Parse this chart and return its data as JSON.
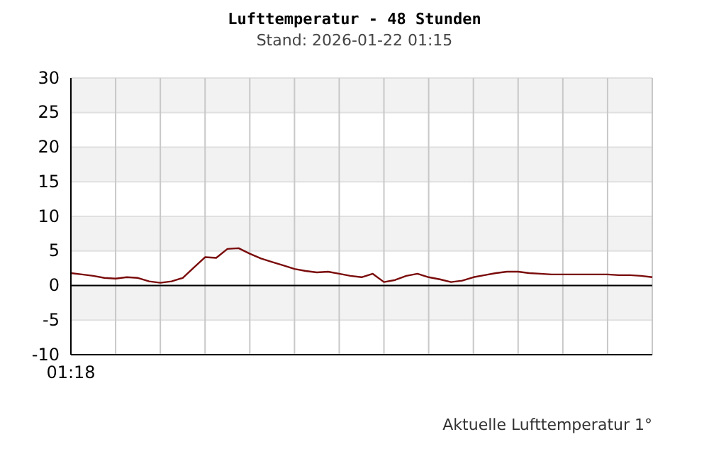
{
  "chart_data": {
    "type": "line",
    "title": "Lufttemperatur - 48 Stunden",
    "subtitle": "Stand: 2026-01-22 01:15",
    "categories": [
      "01:18",
      null,
      null,
      null,
      null,
      null,
      null,
      null,
      null,
      null,
      null,
      null,
      null,
      null,
      null,
      null,
      null,
      null,
      null,
      null,
      null,
      null,
      null,
      null,
      null,
      null,
      null,
      null,
      null,
      null,
      null,
      null,
      null,
      null,
      null,
      null,
      null,
      null,
      null,
      null,
      null,
      null,
      null,
      null,
      null,
      null,
      null,
      null,
      null,
      null,
      null,
      null,
      null
    ],
    "series": [
      {
        "color": "#7a0a0a",
        "values": [
          1.8,
          1.6,
          1.4,
          1.1,
          1.0,
          1.2,
          1.1,
          0.6,
          0.4,
          0.6,
          1.1,
          2.6,
          4.1,
          4.0,
          5.3,
          5.4,
          4.6,
          3.9,
          3.4,
          2.9,
          2.4,
          2.1,
          1.9,
          2.0,
          1.7,
          1.4,
          1.2,
          1.7,
          0.5,
          0.8,
          1.4,
          1.7,
          1.2,
          0.9,
          0.5,
          0.7,
          1.2,
          1.5,
          1.8,
          2.0,
          2.0,
          1.8,
          1.7,
          1.6,
          1.6,
          1.6,
          1.6,
          1.6,
          1.6,
          1.5,
          1.5,
          1.4,
          1.2
        ]
      }
    ],
    "ylim": [
      -10,
      30
    ],
    "yticks": [
      -10,
      -5,
      0,
      5,
      10,
      15,
      20,
      25,
      30
    ],
    "grid": true,
    "ref_lines": [
      {
        "axis": "y",
        "value": 0,
        "color": "#000000"
      }
    ],
    "annotations": [
      "Aktuelle Lufttemperatur 1°"
    ]
  }
}
